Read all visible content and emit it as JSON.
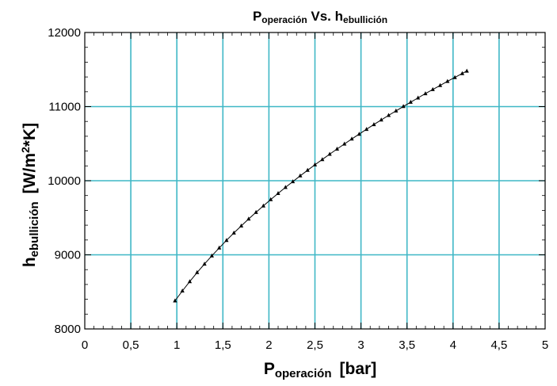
{
  "chart_data": {
    "type": "line",
    "title": {
      "main": "P",
      "main_sub": "operación",
      "mid": " Vs. h",
      "mid_sub": "ebullición"
    },
    "xlabel": {
      "main": "P",
      "sub": "operación",
      "unit": "[bar]"
    },
    "ylabel": {
      "main": "h",
      "sub": "ebullición",
      "unit": "[W/m",
      "sup": "2",
      "unit_end": "*K]"
    },
    "xlim": [
      0,
      5
    ],
    "ylim": [
      8000,
      12000
    ],
    "x_tick_labels": [
      "0",
      "0,5",
      "1",
      "1,5",
      "2",
      "2,5",
      "3",
      "3,5",
      "4",
      "4,5",
      "5"
    ],
    "y_tick_labels": [
      "8000",
      "9000",
      "10000",
      "11000",
      "12000"
    ],
    "grid": true,
    "grid_color": "#3fb7c6",
    "line_color": "#000000",
    "marker": "triangle",
    "series": [
      {
        "x": [
          0.98,
          1.06,
          1.14,
          1.22,
          1.3,
          1.38,
          1.46,
          1.54,
          1.62,
          1.7,
          1.78,
          1.86,
          1.94,
          2.02,
          2.1,
          2.18,
          2.26,
          2.34,
          2.42,
          2.5,
          2.58,
          2.66,
          2.74,
          2.82,
          2.9,
          2.98,
          3.06,
          3.14,
          3.22,
          3.3,
          3.38,
          3.46,
          3.54,
          3.62,
          3.7,
          3.78,
          3.86,
          3.94,
          4.02,
          4.1,
          4.15
        ],
        "y": [
          8380,
          8513,
          8640,
          8761,
          8876,
          8987,
          9093,
          9196,
          9295,
          9390,
          9483,
          9573,
          9660,
          9746,
          9829,
          9910,
          9988,
          10066,
          10141,
          10215,
          10287,
          10358,
          10428,
          10496,
          10564,
          10629,
          10694,
          10758,
          10820,
          10882,
          10942,
          11002,
          11060,
          11118,
          11175,
          11231,
          11286,
          11341,
          11394,
          11447,
          11480
        ]
      }
    ]
  }
}
